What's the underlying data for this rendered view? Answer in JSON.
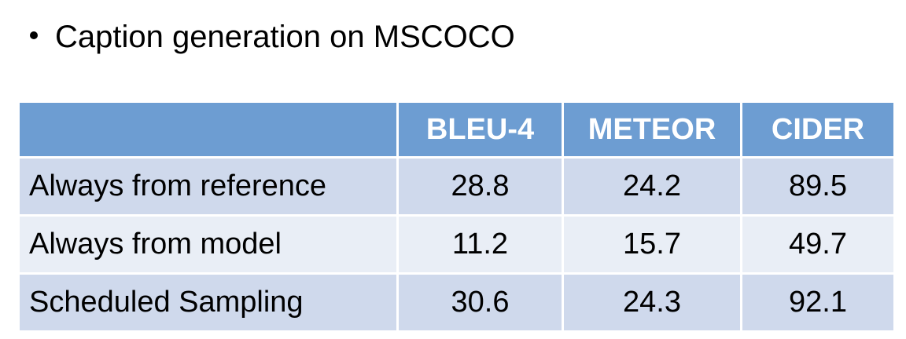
{
  "bullet": {
    "text": "Caption generation on MSCOCO"
  },
  "table": {
    "corner_label": "",
    "columns": [
      "BLEU-4",
      "METEOR",
      "CIDER"
    ],
    "rows": [
      {
        "label": "Always from reference",
        "values": [
          "28.8",
          "24.2",
          "89.5"
        ]
      },
      {
        "label": "Always from model",
        "values": [
          "11.2",
          "15.7",
          "49.7"
        ]
      },
      {
        "label": "Scheduled Sampling",
        "values": [
          "30.6",
          "24.3",
          "92.1"
        ]
      }
    ],
    "colors": {
      "header_bg": "#6d9dd2",
      "row_dark": "#cfd9ec",
      "row_light": "#e9eef6"
    }
  }
}
